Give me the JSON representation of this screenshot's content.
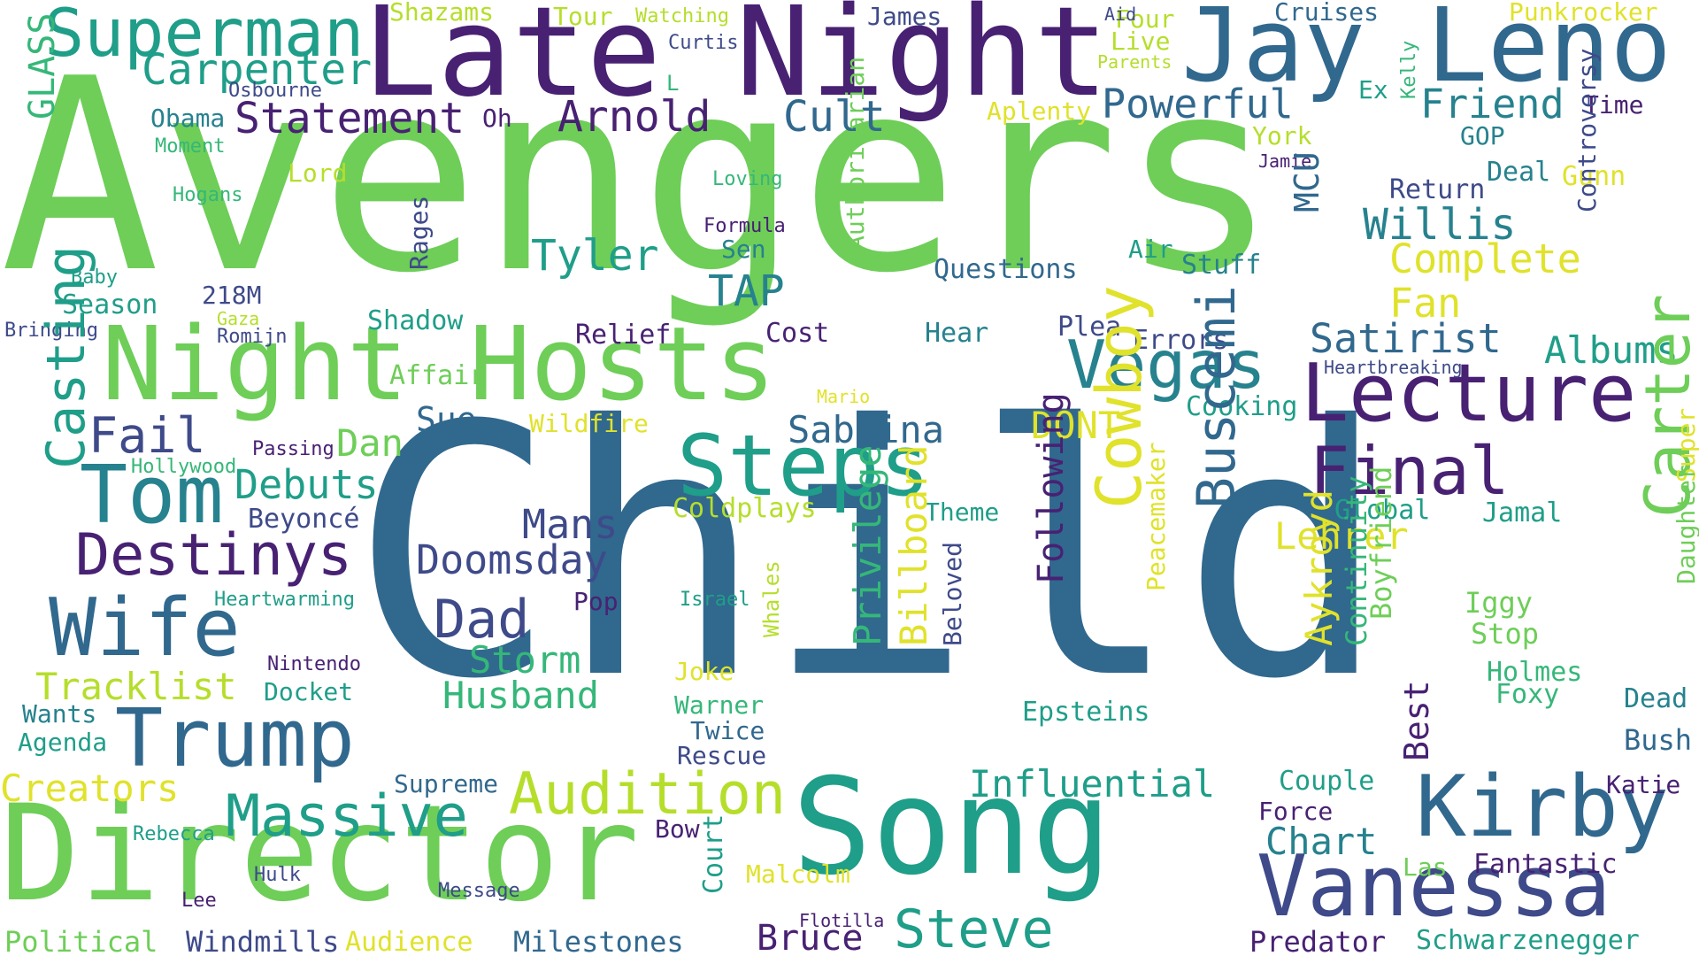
{
  "palette": {
    "dark_purple": "#482173",
    "purple": "#3e4a89",
    "blue": "#31688e",
    "teal": "#26828e",
    "green_teal": "#1f9e89",
    "green": "#35b779",
    "light_green": "#6ece58",
    "lime": "#b5de2b",
    "yellow": "#e0e22b"
  },
  "words": [
    {
      "text": "Avengers",
      "color": "light_green"
    },
    {
      "text": "Child",
      "color": "blue"
    },
    {
      "text": "Late Night",
      "color": "dark_purple"
    },
    {
      "text": "Jay Leno",
      "color": "blue"
    },
    {
      "text": "Night Hosts",
      "color": "light_green"
    },
    {
      "text": "Song",
      "color": "green_teal"
    },
    {
      "text": "Director",
      "color": "light_green"
    },
    {
      "text": "Superman",
      "color": "green_teal"
    },
    {
      "text": "Steps",
      "color": "green_teal"
    },
    {
      "text": "Lecture",
      "color": "dark_purple"
    },
    {
      "text": "Vanessa",
      "color": "purple"
    },
    {
      "text": "Kirby",
      "color": "blue"
    },
    {
      "text": "Tom",
      "color": "teal"
    },
    {
      "text": "Wife",
      "color": "blue"
    },
    {
      "text": "Trump",
      "color": "blue"
    },
    {
      "text": "Final",
      "color": "dark_purple"
    },
    {
      "text": "Vegas",
      "color": "teal"
    },
    {
      "text": "Steve",
      "color": "green_teal"
    },
    {
      "text": "Destinys",
      "color": "dark_purple"
    },
    {
      "text": "Massive",
      "color": "green_teal"
    },
    {
      "text": "Audition",
      "color": "lime"
    },
    {
      "text": "Carpenter",
      "color": "green_teal"
    },
    {
      "text": "Statement",
      "color": "dark_purple"
    },
    {
      "text": "Arnold",
      "color": "dark_purple"
    },
    {
      "text": "Cult",
      "color": "blue"
    },
    {
      "text": "Powerful",
      "color": "blue"
    },
    {
      "text": "Friend",
      "color": "teal"
    },
    {
      "text": "Willis",
      "color": "teal"
    },
    {
      "text": "Complete",
      "color": "yellow"
    },
    {
      "text": "Fan",
      "color": "yellow"
    },
    {
      "text": "Tyler",
      "color": "green_teal"
    },
    {
      "text": "TAP",
      "color": "teal"
    },
    {
      "text": "Satirist",
      "color": "blue"
    },
    {
      "text": "Albums",
      "color": "green_teal"
    },
    {
      "text": "Fail",
      "color": "purple"
    },
    {
      "text": "Dad",
      "color": "purple"
    },
    {
      "text": "Doomsday",
      "color": "purple"
    },
    {
      "text": "Mans",
      "color": "purple"
    },
    {
      "text": "Debuts",
      "color": "green_teal"
    },
    {
      "text": "Dan",
      "color": "light_green"
    },
    {
      "text": "Sabrina",
      "color": "blue"
    },
    {
      "text": "DONT",
      "color": "yellow"
    },
    {
      "text": "Lehrer",
      "color": "yellow"
    },
    {
      "text": "Storm",
      "color": "green"
    },
    {
      "text": "Husband",
      "color": "green"
    },
    {
      "text": "Tracklist",
      "color": "lime"
    },
    {
      "text": "Creators",
      "color": "yellow"
    },
    {
      "text": "Influential",
      "color": "green_teal"
    },
    {
      "text": "Chart",
      "color": "teal"
    },
    {
      "text": "Bruce",
      "color": "dark_purple"
    },
    {
      "text": "Sue",
      "color": "blue"
    },
    {
      "text": "Affair",
      "color": "light_green"
    },
    {
      "text": "Shadow",
      "color": "green_teal"
    },
    {
      "text": "Season",
      "color": "green_teal"
    },
    {
      "text": "Questions",
      "color": "blue"
    },
    {
      "text": "Stuff",
      "color": "teal"
    },
    {
      "text": "Relief",
      "color": "dark_purple"
    },
    {
      "text": "Cost",
      "color": "dark_purple"
    },
    {
      "text": "Hear",
      "color": "teal"
    },
    {
      "text": "Plea",
      "color": "purple"
    },
    {
      "text": "Errors",
      "color": "purple"
    },
    {
      "text": "Cooking",
      "color": "green_teal"
    },
    {
      "text": "Beyoncé",
      "color": "purple"
    },
    {
      "text": "Coldplays",
      "color": "lime"
    },
    {
      "text": "Theme",
      "color": "green_teal"
    },
    {
      "text": "Return",
      "color": "purple"
    },
    {
      "text": "Deal",
      "color": "teal"
    },
    {
      "text": "Gunn",
      "color": "yellow"
    },
    {
      "text": "GOP",
      "color": "teal"
    },
    {
      "text": "Time",
      "color": "dark_purple"
    },
    {
      "text": "York",
      "color": "lime"
    },
    {
      "text": "Aplenty",
      "color": "yellow"
    },
    {
      "text": "Punkrocker",
      "color": "yellow"
    },
    {
      "text": "Cruises",
      "color": "blue"
    },
    {
      "text": "Four",
      "color": "lime"
    },
    {
      "text": "Live",
      "color": "lime"
    },
    {
      "text": "Air",
      "color": "green_teal"
    },
    {
      "text": "Shazams",
      "color": "lime"
    },
    {
      "text": "Tour",
      "color": "lime"
    },
    {
      "text": "Watching",
      "color": "lime"
    },
    {
      "text": "James",
      "color": "purple"
    },
    {
      "text": "Aid",
      "color": "purple"
    },
    {
      "text": "Parents",
      "color": "lime"
    },
    {
      "text": "Curtis",
      "color": "purple"
    },
    {
      "text": "Ex",
      "color": "green_teal"
    },
    {
      "text": "Oh",
      "color": "dark_purple"
    },
    {
      "text": "L",
      "color": "green"
    },
    {
      "text": "Obama",
      "color": "teal"
    },
    {
      "text": "Osbourne",
      "color": "purple"
    },
    {
      "text": "Moment",
      "color": "green"
    },
    {
      "text": "Lord",
      "color": "lime"
    },
    {
      "text": "Hogans",
      "color": "green"
    },
    {
      "text": "Loving",
      "color": "green"
    },
    {
      "text": "Formula",
      "color": "dark_purple"
    },
    {
      "text": "Sen",
      "color": "teal"
    },
    {
      "text": "Jamie",
      "color": "dark_purple"
    },
    {
      "text": "Baby",
      "color": "green_teal"
    },
    {
      "text": "218M",
      "color": "purple"
    },
    {
      "text": "Gaza",
      "color": "lime"
    },
    {
      "text": "Romijn",
      "color": "purple"
    },
    {
      "text": "Bringing",
      "color": "purple"
    },
    {
      "text": "Passing",
      "color": "dark_purple"
    },
    {
      "text": "Hollywood",
      "color": "green"
    },
    {
      "text": "Wildfire",
      "color": "yellow"
    },
    {
      "text": "Mario",
      "color": "yellow"
    },
    {
      "text": "Heartbreaking",
      "color": "purple"
    },
    {
      "text": "Heartwarming",
      "color": "green_teal"
    },
    {
      "text": "Nintendo",
      "color": "dark_purple"
    },
    {
      "text": "Docket",
      "color": "green_teal"
    },
    {
      "text": "Wants",
      "color": "teal"
    },
    {
      "text": "Agenda",
      "color": "green_teal"
    },
    {
      "text": "Pop",
      "color": "dark_purple"
    },
    {
      "text": "Israel",
      "color": "green_teal"
    },
    {
      "text": "Joke",
      "color": "yellow"
    },
    {
      "text": "Warner",
      "color": "green"
    },
    {
      "text": "Twice",
      "color": "blue"
    },
    {
      "text": "Rescue",
      "color": "purple"
    },
    {
      "text": "Supreme",
      "color": "blue"
    },
    {
      "text": "Rebecca",
      "color": "green_teal"
    },
    {
      "text": "Bow",
      "color": "dark_purple"
    },
    {
      "text": "Malcolm",
      "color": "yellow"
    },
    {
      "text": "Hulk",
      "color": "purple"
    },
    {
      "text": "Lee",
      "color": "dark_purple"
    },
    {
      "text": "Message",
      "color": "purple"
    },
    {
      "text": "Political",
      "color": "light_green"
    },
    {
      "text": "Windmills",
      "color": "purple"
    },
    {
      "text": "Audience",
      "color": "yellow"
    },
    {
      "text": "Milestones",
      "color": "blue"
    },
    {
      "text": "Flotilla",
      "color": "dark_purple"
    },
    {
      "text": "Predator",
      "color": "dark_purple"
    },
    {
      "text": "Schwarzenegger",
      "color": "green_teal"
    },
    {
      "text": "Fantastic",
      "color": "dark_purple"
    },
    {
      "text": "Las",
      "color": "light_green"
    },
    {
      "text": "Force",
      "color": "dark_purple"
    },
    {
      "text": "Couple",
      "color": "green_teal"
    },
    {
      "text": "Katie",
      "color": "dark_purple"
    },
    {
      "text": "Bush",
      "color": "blue"
    },
    {
      "text": "Dead",
      "color": "teal"
    },
    {
      "text": "Foxy",
      "color": "green"
    },
    {
      "text": "Holmes",
      "color": "green"
    },
    {
      "text": "Stop",
      "color": "light_green"
    },
    {
      "text": "Iggy",
      "color": "light_green"
    },
    {
      "text": "Jamal",
      "color": "green_teal"
    },
    {
      "text": "Global",
      "color": "green_teal"
    },
    {
      "text": "Epsteins",
      "color": "green_teal"
    },
    {
      "text": "Kelly",
      "color": "green"
    },
    {
      "text": "GLASS",
      "color": "green"
    },
    {
      "text": "Casting",
      "color": "green_teal"
    },
    {
      "text": "Rages",
      "color": "purple"
    },
    {
      "text": "Authoritarian",
      "color": "light_green"
    },
    {
      "text": "MCU",
      "color": "blue"
    },
    {
      "text": "Controversy",
      "color": "purple"
    },
    {
      "text": "Cowboy",
      "color": "yellow"
    },
    {
      "text": "Buscemi",
      "color": "blue"
    },
    {
      "text": "Carter",
      "color": "light_green"
    },
    {
      "text": "Following",
      "color": "dark_purple"
    },
    {
      "text": "Privilege",
      "color": "green"
    },
    {
      "text": "Billboard",
      "color": "yellow"
    },
    {
      "text": "Beloved",
      "color": "purple"
    },
    {
      "text": "Aykroyd",
      "color": "yellow"
    },
    {
      "text": "Best",
      "color": "dark_purple"
    },
    {
      "text": "Peacemaker",
      "color": "yellow"
    },
    {
      "text": "Continuity",
      "color": "green"
    },
    {
      "text": "Boyfriend",
      "color": "light_green"
    },
    {
      "text": "Whales",
      "color": "lime"
    },
    {
      "text": "Court",
      "color": "green_teal"
    },
    {
      "text": "Super",
      "color": "yellow"
    },
    {
      "text": "Daughter",
      "color": "light_green"
    }
  ]
}
